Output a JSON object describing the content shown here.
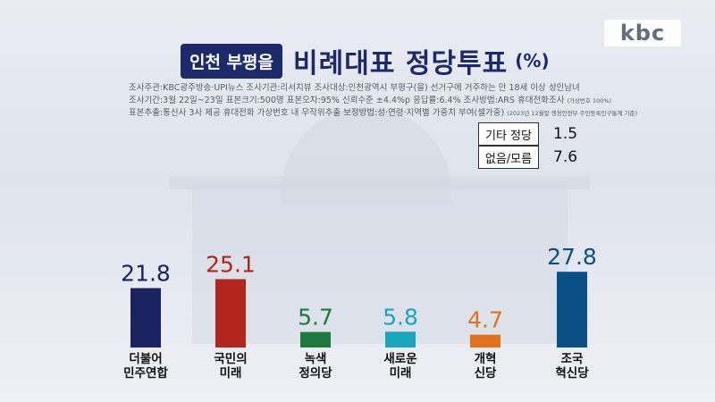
{
  "logo": "kbc",
  "header": {
    "badge": "인천 부평을",
    "title": "비례대표 정당투표",
    "unit": "(%)"
  },
  "meta": {
    "line1": "조사주관:KBC광주방송·UPI뉴스    조사기관:리서치뷰    조사대상:인천광역시 부평구(을) 선거구에 거주하는 만 18세 이상 성인남녀",
    "line2": "조사기간:3월 22일~23일    표본크기:500명    표본오차:95% 신뢰수준 ±4.4%p    응답률:6.4%    조사방법:ARS 휴대전화조사",
    "line2_note": "(가상번호 100%)",
    "line3": "표본추출:통신사 3사 제공 휴대전화 가상번호 내 무작위추출    보정방법:성·연령·지역별 가중치 부여(셀가중)",
    "line3_note": "(2023년 12월말 행정안전부 주민등록인구통계 기준)"
  },
  "side_values": [
    {
      "label": "기타 정당",
      "value": "1.5"
    },
    {
      "label": "없음/모름",
      "value": "7.6"
    }
  ],
  "colors": {
    "navy": "#1c2a6c"
  },
  "chart_data": {
    "type": "bar",
    "title": "비례대표 정당투표",
    "categories": [
      "더불어\n민주연합",
      "국민의\n미래",
      "녹색\n정의당",
      "새로운\n미래",
      "개혁\n신당",
      "조국\n혁신당"
    ],
    "values": [
      21.8,
      25.1,
      5.7,
      5.8,
      4.7,
      27.8
    ],
    "colors": [
      "#1b2360",
      "#b3261e",
      "#1e7a3c",
      "#1aa5bf",
      "#e2711d",
      "#0b4f87"
    ],
    "ylim": [
      0,
      30
    ],
    "grid": false,
    "legend": "none"
  }
}
